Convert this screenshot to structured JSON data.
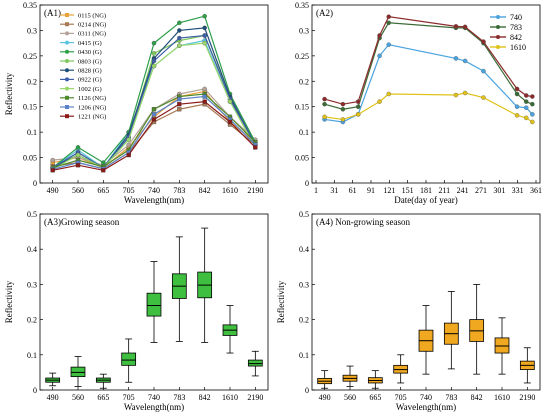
{
  "panels": [
    "A1",
    "A2",
    "A3",
    "A4"
  ],
  "chart_data": [
    {
      "id": "A1",
      "type": "line",
      "title": "(A1)",
      "xlabel": "Wavelength(nm)",
      "ylabel": "Reflectivity",
      "categories": [
        "490",
        "560",
        "665",
        "705",
        "740",
        "783",
        "842",
        "1610",
        "2190"
      ],
      "ylim": [
        0,
        0.35
      ],
      "yticks": [
        "0",
        "0.05",
        "0.1",
        "0.15",
        "0.2",
        "0.25",
        "0.3",
        "0.35"
      ],
      "legend_position": "top-left",
      "series": [
        {
          "name": "0115 (NG)",
          "color": "#e8a33b",
          "marker": "s",
          "values": [
            0.04,
            0.05,
            0.03,
            0.07,
            0.13,
            0.17,
            0.18,
            0.12,
            0.08
          ]
        },
        {
          "name": "0214 (NG)",
          "color": "#a77a56",
          "marker": "s",
          "values": [
            0.033,
            0.04,
            0.028,
            0.06,
            0.12,
            0.145,
            0.155,
            0.115,
            0.075
          ]
        },
        {
          "name": "0311 (NG)",
          "color": "#b5a39a",
          "marker": "o",
          "values": [
            0.045,
            0.05,
            0.035,
            0.075,
            0.145,
            0.175,
            0.185,
            0.13,
            0.085
          ]
        },
        {
          "name": "0415 (G)",
          "color": "#5bc4e0",
          "marker": "o",
          "values": [
            0.03,
            0.065,
            0.03,
            0.1,
            0.23,
            0.27,
            0.28,
            0.16,
            0.08
          ]
        },
        {
          "name": "0430 (G)",
          "color": "#2d9e49",
          "marker": "o",
          "values": [
            0.03,
            0.07,
            0.04,
            0.1,
            0.275,
            0.315,
            0.328,
            0.175,
            0.08
          ]
        },
        {
          "name": "0803 (G)",
          "color": "#7dc95b",
          "marker": "o",
          "values": [
            0.027,
            0.06,
            0.03,
            0.09,
            0.255,
            0.28,
            0.29,
            0.17,
            0.075
          ]
        },
        {
          "name": "0828 (G)",
          "color": "#1f4e79",
          "marker": "o",
          "values": [
            0.03,
            0.055,
            0.03,
            0.095,
            0.245,
            0.3,
            0.305,
            0.17,
            0.075
          ]
        },
        {
          "name": "0922 (G)",
          "color": "#3e5ea8",
          "marker": "o",
          "values": [
            0.03,
            0.06,
            0.03,
            0.09,
            0.24,
            0.285,
            0.29,
            0.165,
            0.075
          ]
        },
        {
          "name": "1002 (G)",
          "color": "#9bd86b",
          "marker": "o",
          "values": [
            0.027,
            0.055,
            0.03,
            0.085,
            0.23,
            0.27,
            0.275,
            0.16,
            0.07
          ]
        },
        {
          "name": "1126 (NG)",
          "color": "#4f8a2c",
          "marker": "s",
          "values": [
            0.03,
            0.045,
            0.032,
            0.065,
            0.145,
            0.17,
            0.175,
            0.13,
            0.08
          ]
        },
        {
          "name": "1206 (NG)",
          "color": "#5b82c8",
          "marker": "s",
          "values": [
            0.027,
            0.04,
            0.028,
            0.06,
            0.135,
            0.165,
            0.17,
            0.125,
            0.075
          ]
        },
        {
          "name": "1221 (NG)",
          "color": "#8b1a1a",
          "marker": "s",
          "values": [
            0.025,
            0.035,
            0.025,
            0.055,
            0.125,
            0.155,
            0.16,
            0.12,
            0.07
          ]
        }
      ]
    },
    {
      "id": "A2",
      "type": "line",
      "title": "(A2)",
      "xlabel": "Date(day of year)",
      "ylabel": "",
      "xlim": [
        1,
        361
      ],
      "xticks": [
        "1",
        "31",
        "61",
        "91",
        "121",
        "151",
        "181",
        "211",
        "241",
        "271",
        "301",
        "331",
        "361"
      ],
      "ylim": [
        0,
        0.35
      ],
      "yticks": [
        "0",
        "0.05",
        "0.1",
        "0.15",
        "0.2",
        "0.25",
        "0.3",
        "0.35"
      ],
      "legend_position": "top-right",
      "x": [
        15,
        45,
        70,
        105,
        120,
        230,
        245,
        275,
        330,
        345,
        355
      ],
      "series": [
        {
          "name": "740",
          "color": "#4aa3df",
          "values": [
            0.125,
            0.12,
            0.135,
            0.25,
            0.272,
            0.245,
            0.24,
            0.22,
            0.15,
            0.148,
            0.135
          ]
        },
        {
          "name": "783",
          "color": "#3a6b35",
          "values": [
            0.155,
            0.145,
            0.15,
            0.285,
            0.315,
            0.305,
            0.305,
            0.275,
            0.175,
            0.16,
            0.155
          ]
        },
        {
          "name": "842",
          "color": "#8b2b2b",
          "values": [
            0.165,
            0.155,
            0.16,
            0.29,
            0.327,
            0.308,
            0.307,
            0.278,
            0.185,
            0.172,
            0.17
          ]
        },
        {
          "name": "1610",
          "color": "#e0c21a",
          "values": [
            0.13,
            0.125,
            0.135,
            0.16,
            0.175,
            0.173,
            0.177,
            0.168,
            0.133,
            0.128,
            0.12
          ]
        }
      ]
    },
    {
      "id": "A3",
      "type": "box",
      "title": "(A3)Growing season",
      "xlabel": "Wavelength(nm)",
      "ylabel": "Reflectivity",
      "categories": [
        "490",
        "560",
        "665",
        "705",
        "740",
        "783",
        "842",
        "1610",
        "2190"
      ],
      "ylim": [
        0,
        0.5
      ],
      "yticks": [
        "0",
        "0.1",
        "0.2",
        "0.3",
        "0.4",
        "0.5"
      ],
      "color": "#3fbf3f",
      "boxes": [
        {
          "min": 0.012,
          "q1": 0.022,
          "median": 0.028,
          "q3": 0.034,
          "max": 0.048
        },
        {
          "min": 0.01,
          "q1": 0.038,
          "median": 0.05,
          "q3": 0.065,
          "max": 0.095
        },
        {
          "min": 0.005,
          "q1": 0.022,
          "median": 0.028,
          "q3": 0.034,
          "max": 0.045
        },
        {
          "min": 0.022,
          "q1": 0.07,
          "median": 0.085,
          "q3": 0.105,
          "max": 0.145
        },
        {
          "min": 0.135,
          "q1": 0.21,
          "median": 0.24,
          "q3": 0.275,
          "max": 0.365
        },
        {
          "min": 0.138,
          "q1": 0.26,
          "median": 0.295,
          "q3": 0.33,
          "max": 0.435
        },
        {
          "min": 0.135,
          "q1": 0.262,
          "median": 0.298,
          "q3": 0.335,
          "max": 0.46
        },
        {
          "min": 0.105,
          "q1": 0.155,
          "median": 0.17,
          "q3": 0.185,
          "max": 0.24
        },
        {
          "min": 0.04,
          "q1": 0.068,
          "median": 0.075,
          "q3": 0.085,
          "max": 0.11
        }
      ]
    },
    {
      "id": "A4",
      "type": "box",
      "title": "(A4) Non-growing season",
      "xlabel": "Wavelength(nm)",
      "ylabel": "Reflectivity",
      "categories": [
        "490",
        "560",
        "665",
        "705",
        "740",
        "783",
        "842",
        "1610",
        "2190"
      ],
      "ylim": [
        0,
        0.5
      ],
      "yticks": [
        "0",
        "0.1",
        "0.2",
        "0.3",
        "0.4",
        "0.5"
      ],
      "color": "#f0a820",
      "boxes": [
        {
          "min": 0.005,
          "q1": 0.018,
          "median": 0.025,
          "q3": 0.033,
          "max": 0.055
        },
        {
          "min": 0.01,
          "q1": 0.025,
          "median": 0.033,
          "q3": 0.042,
          "max": 0.068
        },
        {
          "min": 0.005,
          "q1": 0.02,
          "median": 0.027,
          "q3": 0.035,
          "max": 0.055
        },
        {
          "min": 0.02,
          "q1": 0.048,
          "median": 0.058,
          "q3": 0.07,
          "max": 0.1
        },
        {
          "min": 0.045,
          "q1": 0.11,
          "median": 0.14,
          "q3": 0.17,
          "max": 0.24
        },
        {
          "min": 0.06,
          "q1": 0.13,
          "median": 0.16,
          "q3": 0.19,
          "max": 0.28
        },
        {
          "min": 0.045,
          "q1": 0.138,
          "median": 0.168,
          "q3": 0.2,
          "max": 0.3
        },
        {
          "min": 0.045,
          "q1": 0.105,
          "median": 0.125,
          "q3": 0.148,
          "max": 0.205
        },
        {
          "min": 0.02,
          "q1": 0.058,
          "median": 0.07,
          "q3": 0.082,
          "max": 0.12
        }
      ]
    }
  ]
}
